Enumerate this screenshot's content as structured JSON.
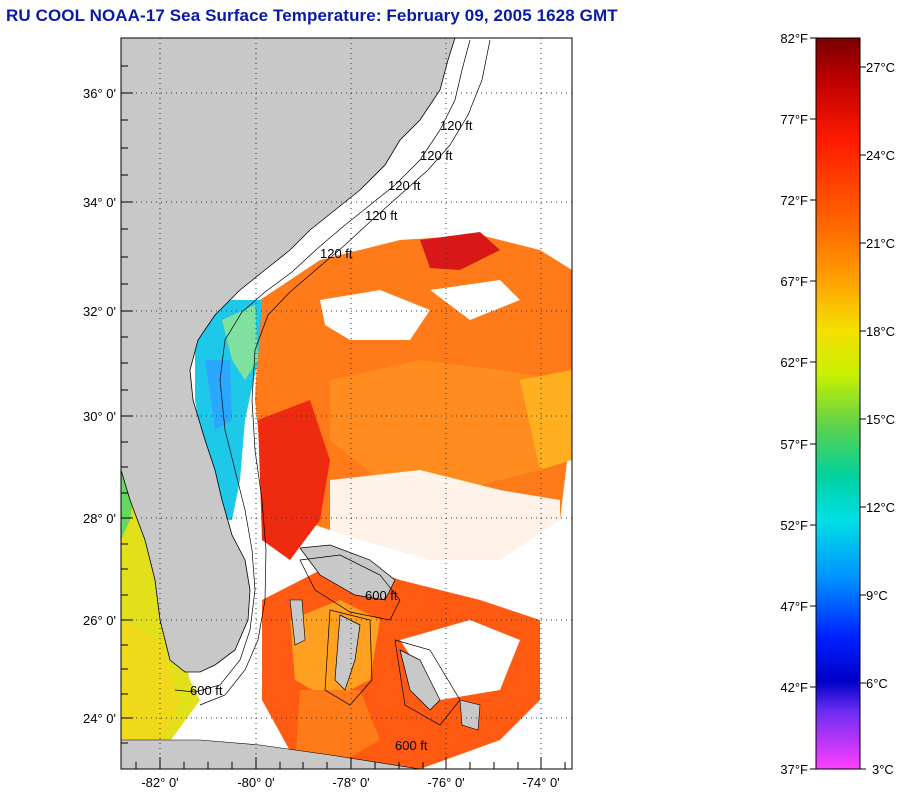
{
  "title": "RU COOL  NOAA-17  Sea Surface Temperature:  February 09, 2005 1628 GMT",
  "map": {
    "lat_labels": [
      "36° 0'",
      "34° 0'",
      "32° 0'",
      "30° 0'",
      "28° 0'",
      "26° 0'",
      "24° 0'"
    ],
    "lon_labels": [
      "-82° 0'",
      "-80° 0'",
      "-78° 0'",
      "-76° 0'",
      "-74° 0'"
    ],
    "contour_labels": [
      "120 ft",
      "120 ft",
      "120 ft",
      "120 ft",
      "120 ft",
      "600 ft",
      "600 ft",
      "600 ft"
    ]
  },
  "colorbar": {
    "f_labels": [
      "82°F",
      "77°F",
      "72°F",
      "67°F",
      "62°F",
      "57°F",
      "52°F",
      "47°F",
      "42°F",
      "37°F"
    ],
    "c_labels": [
      "27°C",
      "24°C",
      "21°C",
      "18°C",
      "15°C",
      "12°C",
      "9°C",
      "6°C",
      "3°C"
    ],
    "colors": [
      "#7a0000",
      "#e00000",
      "#ff5000",
      "#ff9a00",
      "#f5e000",
      "#8ce000",
      "#00d26e",
      "#00e6e6",
      "#0080ff",
      "#0000e6",
      "#7a3cff",
      "#ff40ff"
    ]
  }
}
